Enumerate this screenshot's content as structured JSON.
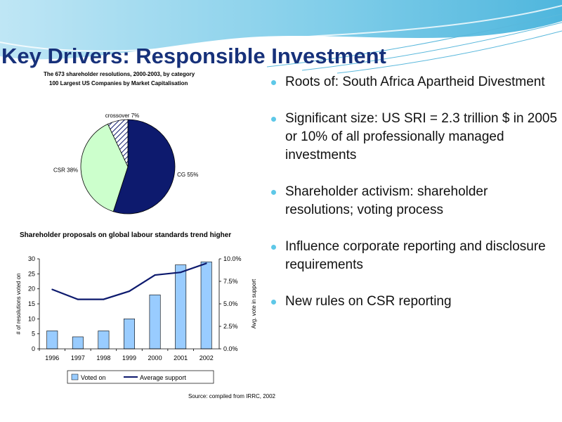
{
  "slide": {
    "title": "Key Drivers: Responsible Investment",
    "bullets": [
      "Roots of:  South Africa Apartheid Divestment",
      "Significant size:  US SRI = 2.3 trillion $ in 2005 or 10% of all professionally managed investments",
      "Shareholder activism:  shareholder resolutions; voting process",
      "Influence corporate reporting and disclosure requirements",
      "New rules on CSR reporting"
    ]
  },
  "chart_data": [
    {
      "type": "pie",
      "title": "The 673 shareholder resolutions, 2000-2003, by category",
      "subtitle": "100 Largest US Companies by Market Capitalisation",
      "slices": [
        {
          "label": "CG 55%",
          "value": 55,
          "color": "#0d1a6e",
          "pattern": "solid"
        },
        {
          "label": "CSR 38%",
          "value": 38,
          "color": "#ccffcc",
          "pattern": "solid"
        },
        {
          "label": "crossover 7%",
          "value": 7,
          "color": "#ffffff",
          "pattern": "hatch"
        }
      ]
    },
    {
      "type": "bar",
      "title": "Shareholder proposals on global labour standards trend higher",
      "categories": [
        "1996",
        "1997",
        "1998",
        "1999",
        "2000",
        "2001",
        "2002"
      ],
      "series": [
        {
          "name": "Voted on",
          "type": "bar",
          "axis": "left",
          "color": "#99ccff",
          "values": [
            6,
            4,
            6,
            10,
            18,
            28,
            29
          ]
        },
        {
          "name": "Average support",
          "type": "line",
          "axis": "right",
          "color": "#0d1a6e",
          "values": [
            6.6,
            5.5,
            5.5,
            6.4,
            8.2,
            8.5,
            9.5
          ]
        }
      ],
      "ylabel": "# of resolutions voted on",
      "ylabel_right": "Avg. vote in support",
      "ylim": [
        0,
        30
      ],
      "yticks": [
        "0",
        "5",
        "10",
        "15",
        "20",
        "25",
        "30"
      ],
      "ylim_right": [
        0,
        10
      ],
      "yticks_right": [
        "0.0%",
        "2.5%",
        "5.0%",
        "7.5%",
        "10.0%"
      ],
      "legend_position": "bottom",
      "source": "Source: compiled from IRRC, 2002"
    }
  ]
}
